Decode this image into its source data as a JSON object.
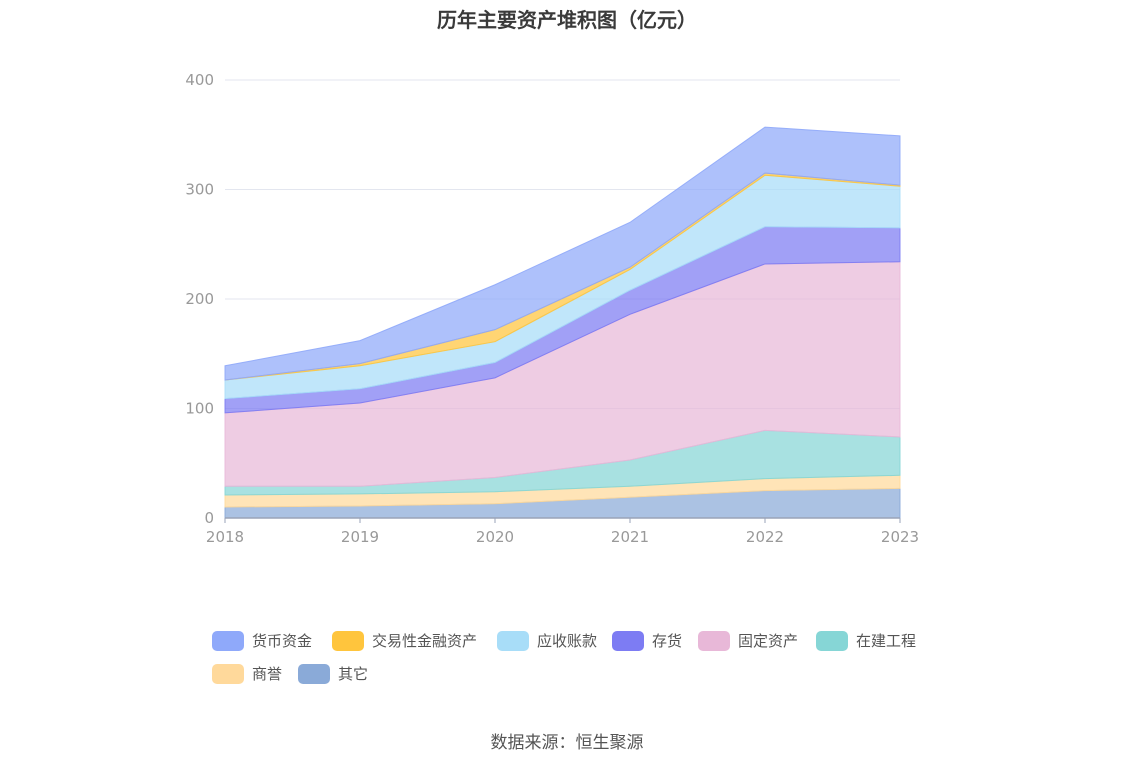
{
  "chart_data": {
    "type": "area",
    "stacked": true,
    "title": "历年主要资产堆积图（亿元）",
    "x": [
      "2018",
      "2019",
      "2020",
      "2021",
      "2022",
      "2023"
    ],
    "ylim": [
      0,
      400
    ],
    "yticks": [
      "0",
      "100",
      "200",
      "300",
      "400"
    ],
    "grid": true,
    "legend_position": "bottom",
    "series": [
      {
        "name": "其它",
        "color": "#8aaad8",
        "values": [
          10,
          11,
          13,
          19,
          25,
          27
        ]
      },
      {
        "name": "商誉",
        "color": "#ffd99b",
        "values": [
          11,
          11,
          11,
          10,
          11,
          12
        ]
      },
      {
        "name": "在建工程",
        "color": "#86d6d6",
        "values": [
          8,
          7,
          13,
          24,
          44,
          35
        ]
      },
      {
        "name": "固定资产",
        "color": "#e8b8d8",
        "values": [
          67,
          76,
          91,
          133,
          152,
          160
        ]
      },
      {
        "name": "存货",
        "color": "#7d7cf3",
        "values": [
          13,
          13,
          14,
          22,
          34,
          31
        ]
      },
      {
        "name": "应收账款",
        "color": "#a8ddf8",
        "values": [
          17,
          21,
          19,
          19,
          47,
          38
        ]
      },
      {
        "name": "交易性金融资产",
        "color": "#ffc53d",
        "values": [
          0,
          2,
          11,
          2,
          2,
          1
        ]
      },
      {
        "name": "货币资金",
        "color": "#8fa9fa",
        "values": [
          13,
          21,
          41,
          41,
          42,
          45
        ]
      }
    ],
    "legend_order": [
      "货币资金",
      "交易性金融资产",
      "应收账款",
      "存货",
      "固定资产",
      "在建工程",
      "商誉",
      "其它"
    ],
    "source": "数据来源：恒生聚源"
  }
}
